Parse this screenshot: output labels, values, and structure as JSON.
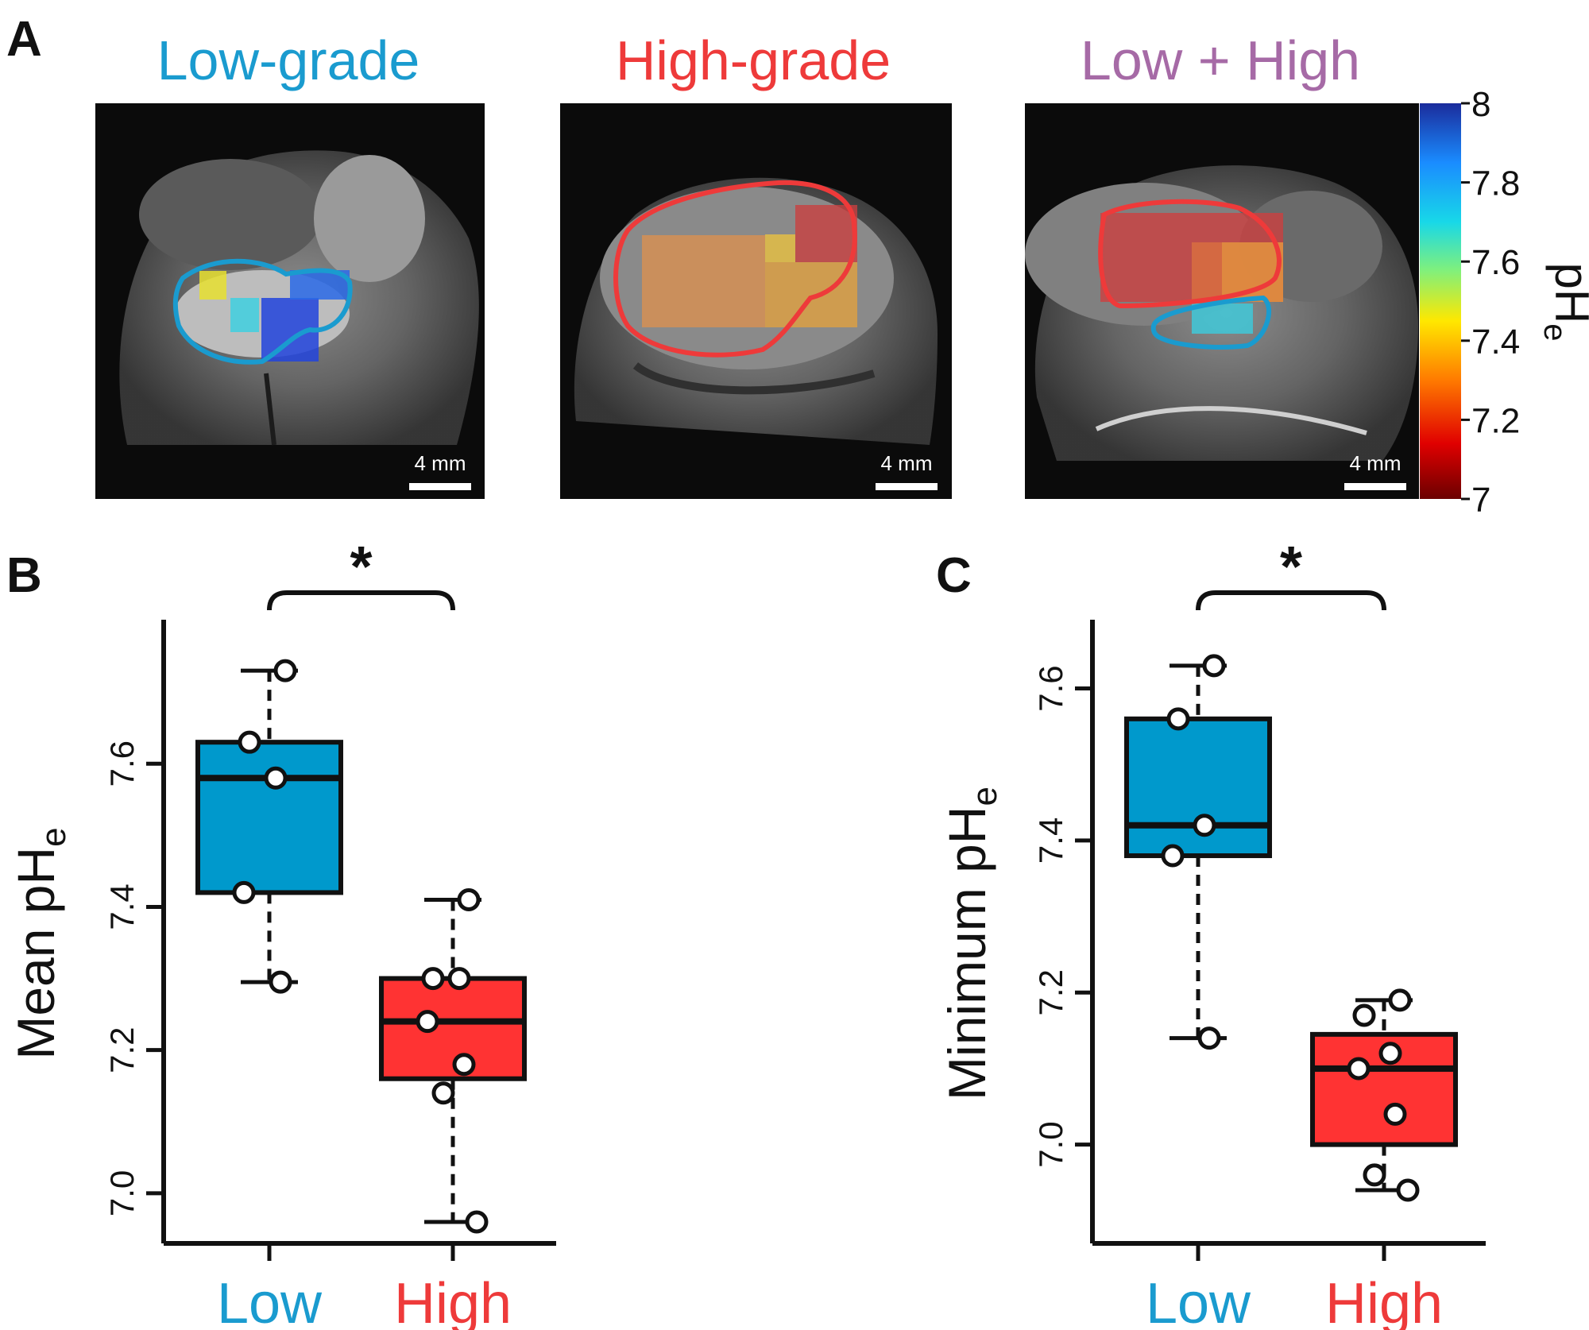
{
  "panel_labels": {
    "a": "A",
    "b": "B",
    "c": "C"
  },
  "panel_a": {
    "titles": [
      {
        "text": "Low-grade",
        "color": "#1a9bcf"
      },
      {
        "text": "High-grade",
        "color": "#ee3a3a"
      },
      {
        "text": "Low + High",
        "color": "#a66aa6"
      }
    ],
    "scale_bar_label": "4 mm",
    "colorbar": {
      "label": "pH",
      "label_subscript": "e",
      "ticks": [
        "8",
        "7.8",
        "7.6",
        "7.4",
        "7.2",
        "7"
      ],
      "range": [
        7,
        8
      ],
      "colors_low_to_high": [
        "#6b0000",
        "#e00000",
        "#ff7a00",
        "#ffe800",
        "#7ef07e",
        "#18d8e8",
        "#1a8cff",
        "#1b2c9c"
      ]
    }
  },
  "colors": {
    "low": "#1a9bcf",
    "high": "#ee3a3a",
    "low_box": "#0099cc",
    "high_box": "#ff3333"
  },
  "chart_data": [
    {
      "type": "box",
      "panel": "B",
      "ylabel": "Mean pH",
      "ylabel_subscript": "e",
      "yticks": [
        "7.0",
        "7.2",
        "7.4",
        "7.6"
      ],
      "ytick_values": [
        7.0,
        7.2,
        7.4,
        7.6
      ],
      "ylim": [
        6.93,
        7.79
      ],
      "categories": [
        "Low",
        "High"
      ],
      "boxes": [
        {
          "name": "Low",
          "whisker_low": 7.295,
          "q1": 7.42,
          "median": 7.58,
          "q3": 7.63,
          "whisker_high": 7.73
        },
        {
          "name": "High",
          "whisker_low": 6.96,
          "q1": 7.16,
          "median": 7.24,
          "q3": 7.3,
          "whisker_high": 7.41
        }
      ],
      "points": [
        [
          7.73,
          7.63,
          7.58,
          7.42,
          7.295
        ],
        [
          7.41,
          7.3,
          7.3,
          7.24,
          7.18,
          7.14,
          6.96
        ]
      ],
      "significance": "*"
    },
    {
      "type": "box",
      "panel": "C",
      "ylabel": "Minimum pH",
      "ylabel_subscript": "e",
      "yticks": [
        "7.0",
        "7.2",
        "7.4",
        "7.6"
      ],
      "ytick_values": [
        7.0,
        7.2,
        7.4,
        7.6
      ],
      "ylim": [
        6.87,
        7.68
      ],
      "categories": [
        "Low",
        "High"
      ],
      "boxes": [
        {
          "name": "Low",
          "whisker_low": 7.14,
          "q1": 7.38,
          "median": 7.42,
          "q3": 7.56,
          "whisker_high": 7.63
        },
        {
          "name": "High",
          "whisker_low": 6.94,
          "q1": 7.0,
          "median": 7.1,
          "q3": 7.145,
          "whisker_high": 7.19
        }
      ],
      "points": [
        [
          7.63,
          7.56,
          7.42,
          7.38,
          7.14
        ],
        [
          7.19,
          7.17,
          7.12,
          7.1,
          7.04,
          6.96,
          6.94
        ]
      ],
      "significance": "*"
    }
  ]
}
